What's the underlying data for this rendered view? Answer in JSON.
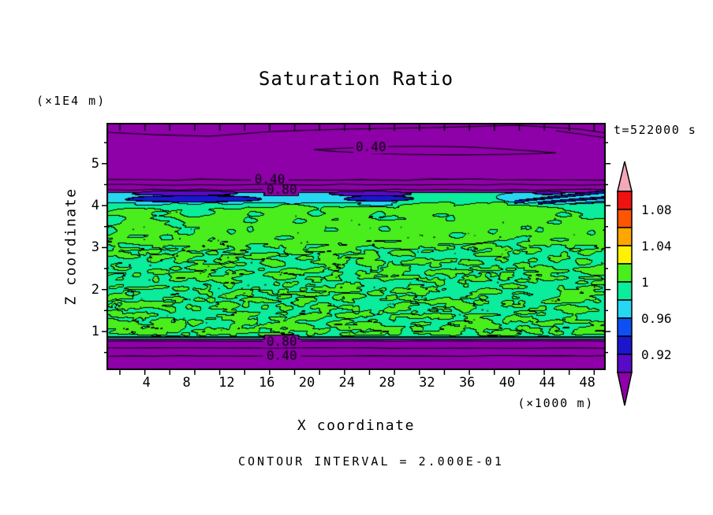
{
  "chart_data": {
    "type": "filled_contour",
    "title": "Saturation Ratio",
    "xlabel": "X coordinate",
    "ylabel": "Z coordinate",
    "x_unit": "(×1000 m)",
    "y_unit": "(×1E4 m)",
    "time_label": "t=522000 s",
    "footer": "CONTOUR INTERVAL = 2.000E-01",
    "contour_interval": 0.2,
    "x_ticks": [
      4,
      8,
      12,
      16,
      20,
      24,
      28,
      32,
      36,
      40,
      44,
      48
    ],
    "y_ticks": [
      1,
      2,
      3,
      4,
      5
    ],
    "x_range_km": [
      0,
      50
    ],
    "z_range_1e4m": [
      0,
      5.95
    ],
    "contour_line_labels": [
      {
        "text": "0.40",
        "x_km": 26.4,
        "z": 5.39
      },
      {
        "text": "0.40",
        "x_km": 16.3,
        "z": 4.62
      },
      {
        "text": "0.80",
        "x_km": 17.5,
        "z": 4.38
      },
      {
        "text": "0.80",
        "x_km": 17.5,
        "z": 0.76
      },
      {
        "text": "0.40",
        "x_km": 17.5,
        "z": 0.42
      }
    ],
    "colorbar": {
      "tick_labels": [
        "1.08",
        "1.04",
        "1",
        "0.96",
        "0.92"
      ],
      "bands_top_to_bottom": [
        "red",
        "orange",
        "amber",
        "yellow",
        "lime",
        "spring",
        "cyan",
        "blue",
        "navy",
        "violet"
      ],
      "band_values_top_to_bottom": [
        [
          1.08,
          1.1
        ],
        [
          1.06,
          1.08
        ],
        [
          1.04,
          1.06
        ],
        [
          1.02,
          1.04
        ],
        [
          1.0,
          1.02
        ],
        [
          0.98,
          1.0
        ],
        [
          0.96,
          0.98
        ],
        [
          0.94,
          0.96
        ],
        [
          0.92,
          0.94
        ],
        [
          0.9,
          0.92
        ]
      ],
      "top_cap_color": "pink",
      "bottom_cap_color": "purple"
    },
    "field_structure": [
      {
        "region": "top",
        "z_range": [
          4.45,
          5.95
        ],
        "saturation": "<0.9, decreasing upward; line contours 0.8, 0.6, 0.4, 0.2",
        "fill": "purple"
      },
      {
        "region": "upper-transition",
        "z_range": [
          4.0,
          4.45
        ],
        "saturation": "0.90-0.98",
        "fill": "violet/navy/cyan streaks"
      },
      {
        "region": "middle",
        "z_range": [
          0.85,
          4.0
        ],
        "saturation": "0.98-1.02 mottled",
        "fill": "spring-green with lime speckles"
      },
      {
        "region": "bottom-transition",
        "z_range": [
          0.75,
          0.85
        ],
        "saturation": "0.90-0.98",
        "fill": "thin cyan band"
      },
      {
        "region": "bottom",
        "z_range": [
          0,
          0.75
        ],
        "saturation": "<0.9, decreasing downward; line contours 0.8, 0.6, 0.4",
        "fill": "purple"
      }
    ]
  },
  "palette": {
    "purple": "#8E00A8",
    "violet": "#5909C8",
    "navy": "#1B16CE",
    "blue": "#0D4FF2",
    "cyan": "#27D7F2",
    "spring": "#0BEC9C",
    "lime": "#49EE1C",
    "yellow": "#FFF200",
    "amber": "#FFA600",
    "orange": "#FF5500",
    "red": "#F01111",
    "pink": "#F4A7B8"
  }
}
